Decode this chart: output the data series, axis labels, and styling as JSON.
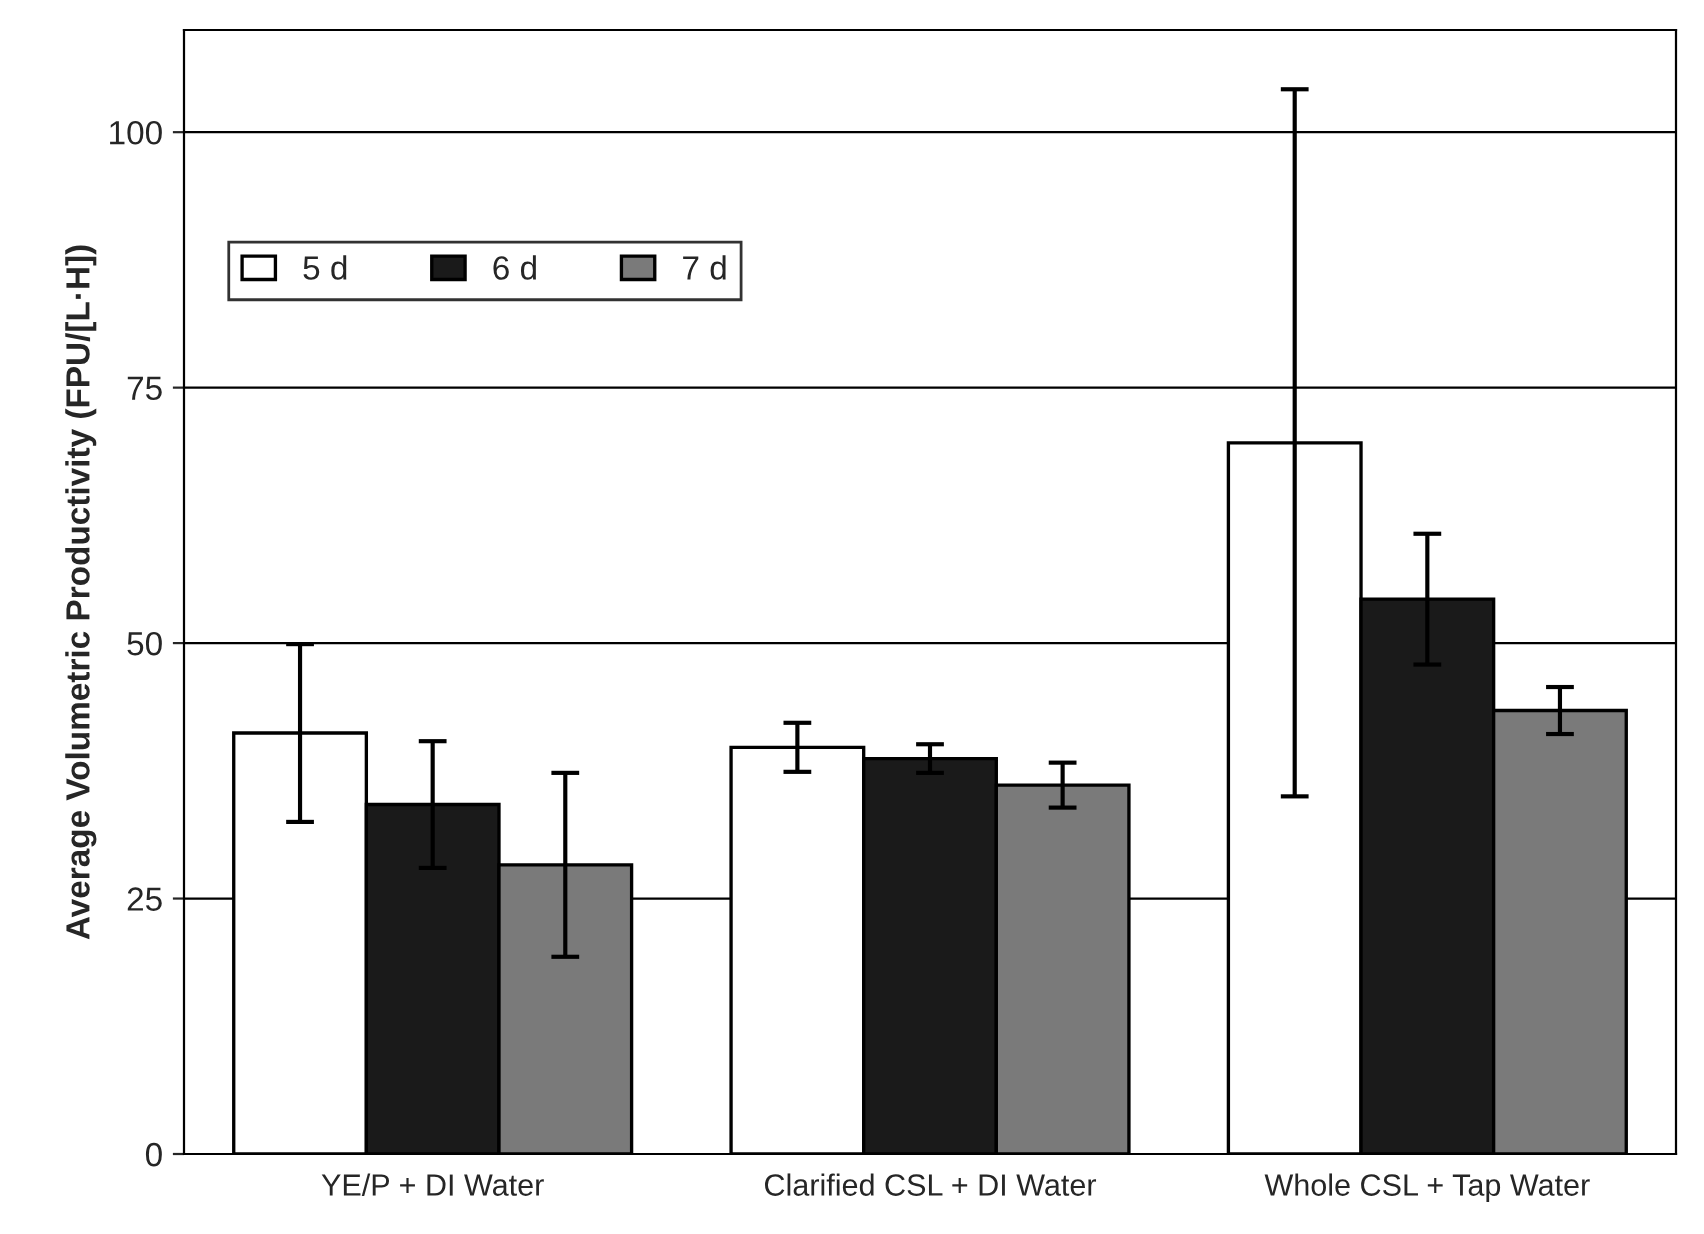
{
  "chart_data": {
    "type": "bar",
    "ylabel": "Average Volumetric Productivity (FPU/[L·H])",
    "categories": [
      "YE/P + DI Water",
      "Clarified CSL + DI Water",
      "Whole CSL + Tap Water"
    ],
    "series": [
      {
        "name": "5 d",
        "color": "#ffffff",
        "values": [
          41.2,
          39.8,
          69.6
        ],
        "errors": [
          8.7,
          2.4,
          34.6
        ]
      },
      {
        "name": "6 d",
        "color": "#1a1a1a",
        "values": [
          34.2,
          38.7,
          54.3
        ],
        "errors": [
          6.2,
          1.4,
          6.4
        ]
      },
      {
        "name": "7 d",
        "color": "#7a7a7a",
        "values": [
          28.3,
          36.1,
          43.4
        ],
        "errors": [
          9.0,
          2.2,
          2.3
        ]
      }
    ],
    "ylim": [
      0,
      110
    ],
    "yticks": [
      0,
      25,
      50,
      75,
      100
    ],
    "grid": "y",
    "legend": "top left"
  }
}
